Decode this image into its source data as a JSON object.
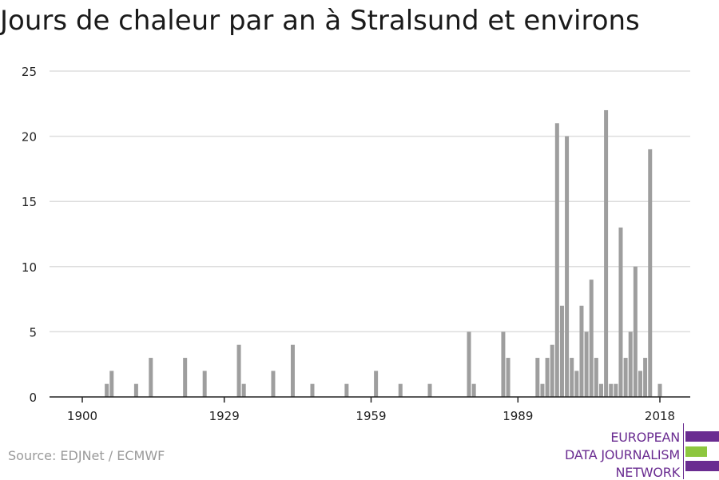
{
  "title": "Jours de chaleur par an à Stralsund et environs",
  "source": "Source: EDJNet / ECMWF",
  "logo": {
    "lines": [
      "EUROPEAN",
      "DATA JOURNALISM",
      "NETWORK"
    ],
    "colors": {
      "purple": "#6a2c91",
      "green": "#8dc63f"
    }
  },
  "colors": {
    "bar": "#9e9e9e",
    "grid": "#dddddd",
    "axis": "#222222",
    "text": "#222222"
  },
  "chart_data": {
    "type": "bar",
    "title": "Jours de chaleur par an à Stralsund et environs",
    "xlabel": "",
    "ylabel": "",
    "ylim": [
      0,
      25
    ],
    "xlim": [
      1900,
      2018
    ],
    "yticks": [
      0,
      5,
      10,
      15,
      20,
      25
    ],
    "xticks": [
      1900,
      1929,
      1959,
      1989,
      2018
    ],
    "grid": true,
    "x": [
      1905,
      1906,
      1911,
      1914,
      1921,
      1925,
      1932,
      1933,
      1939,
      1943,
      1947,
      1954,
      1960,
      1965,
      1971,
      1979,
      1980,
      1986,
      1987,
      1993,
      1994,
      1995,
      1996,
      1997,
      1998,
      1999,
      2000,
      2001,
      2002,
      2003,
      2004,
      2005,
      2006,
      2007,
      2008,
      2009,
      2010,
      2011,
      2012,
      2013,
      2014,
      2015,
      2016,
      2018
    ],
    "values": [
      1,
      2,
      1,
      3,
      3,
      2,
      4,
      1,
      2,
      4,
      1,
      1,
      2,
      1,
      1,
      5,
      1,
      5,
      3,
      3,
      1,
      3,
      4,
      21,
      7,
      20,
      3,
      2,
      7,
      5,
      9,
      3,
      1,
      22,
      1,
      1,
      13,
      3,
      5,
      10,
      2,
      3,
      19,
      1
    ]
  }
}
